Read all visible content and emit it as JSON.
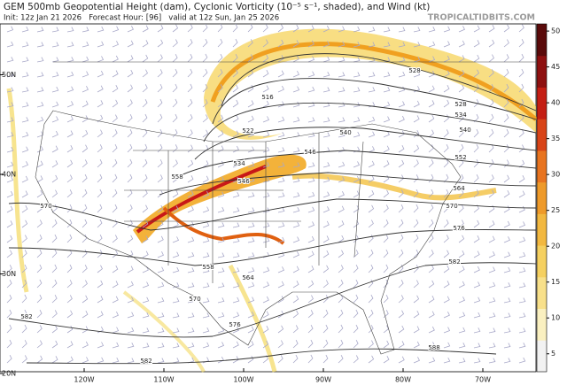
{
  "header": {
    "title": "GEM 500mb Geopotential Height (dam), Cyclonic Vorticity (10⁻⁵ s⁻¹, shaded), and Wind (kt)",
    "subtitle": "Init: 12z Jan 21 2026   Forecast Hour: [96]   valid at 12z Sun, Jan 25 2026",
    "brand": "TROPICALTIDBITS.COM"
  },
  "map": {
    "lat_ticks": [
      {
        "value": 50,
        "label": "50N"
      },
      {
        "value": 40,
        "label": "40N"
      },
      {
        "value": 30,
        "label": "30N"
      },
      {
        "value": 20,
        "label": "20N"
      }
    ],
    "lon_ticks": [
      {
        "value": -120,
        "label": "120W"
      },
      {
        "value": -110,
        "label": "110W"
      },
      {
        "value": -100,
        "label": "100W"
      },
      {
        "value": -90,
        "label": "90W"
      },
      {
        "value": -80,
        "label": "80W"
      },
      {
        "value": -70,
        "label": "70W"
      }
    ],
    "contour_labels": [
      "516",
      "522",
      "528",
      "534",
      "540",
      "546",
      "552",
      "558",
      "564",
      "570",
      "576",
      "582",
      "588",
      "570",
      "582",
      "582",
      "558",
      "564",
      "570",
      "576",
      "528",
      "534",
      "540",
      "546"
    ]
  },
  "colorbar": {
    "lim": [
      2.5,
      51
    ],
    "ticks": [
      5,
      10,
      15,
      20,
      25,
      30,
      35,
      40,
      45,
      50
    ]
  }
}
